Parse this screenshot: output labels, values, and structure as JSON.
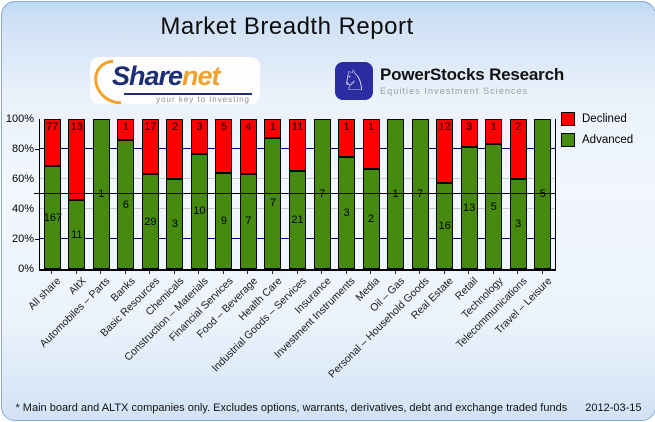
{
  "title": "Market Breadth Report",
  "logos": {
    "sharenet": {
      "text_primary": "Share",
      "text_secondary": "net",
      "tagline": "your key to investing"
    },
    "powerstocks": {
      "icon": "knight-chess-icon",
      "icon_glyph": "♘",
      "name": "PowerStocks  Research",
      "tagline": "Equities Investment Sciences"
    }
  },
  "chart_data": {
    "type": "bar",
    "stacked": true,
    "normalized": "percent",
    "title": "Market Breadth Report",
    "categories": [
      "All share",
      "AltX",
      "Automobiles – Parts",
      "Banks",
      "Basic Resources",
      "Chemicals",
      "Construction – Materials",
      "Financial Services",
      "Food – Beverage",
      "Health Care",
      "Industrial Goods – Services",
      "Insurance",
      "Investment Instruments",
      "Media",
      "Oil – Gas",
      "Personal – Household Goods",
      "Real Estate",
      "Retail",
      "Technology",
      "Telecommunications",
      "Travel – Leisure"
    ],
    "series": [
      {
        "name": "Declined",
        "color": "#ff0000",
        "values": [
          77,
          13,
          0,
          1,
          17,
          2,
          3,
          5,
          4,
          1,
          11,
          0,
          1,
          1,
          0,
          0,
          12,
          3,
          1,
          2,
          0
        ]
      },
      {
        "name": "Advanced",
        "color": "#468a10",
        "values": [
          167,
          11,
          1,
          6,
          29,
          3,
          10,
          9,
          7,
          7,
          21,
          7,
          3,
          2,
          1,
          7,
          16,
          13,
          5,
          3,
          5
        ]
      }
    ],
    "ylim": [
      0,
      100
    ],
    "y_tick_labels": [
      "100%",
      "80%",
      "60%",
      "40%",
      "20%",
      "0%"
    ],
    "y_gridlines": [
      {
        "pct": 80,
        "color": "#000080"
      },
      {
        "pct": 60,
        "color": "#c9c9c9"
      },
      {
        "pct": 40,
        "color": "#c9c9c9"
      },
      {
        "pct": 20,
        "color": "#000080"
      }
    ],
    "reference_line_pct": 50,
    "legend": [
      {
        "label": "Declined",
        "color": "#ff0000"
      },
      {
        "label": "Advanced",
        "color": "#468a10"
      }
    ],
    "legend_position": "top-right",
    "bar_value_labels": true
  },
  "footer": {
    "note": "* Main board and ALTX companies only. Excludes options, warrants, derivatives, debt and exchange traded funds",
    "date": "2012-03-15"
  }
}
